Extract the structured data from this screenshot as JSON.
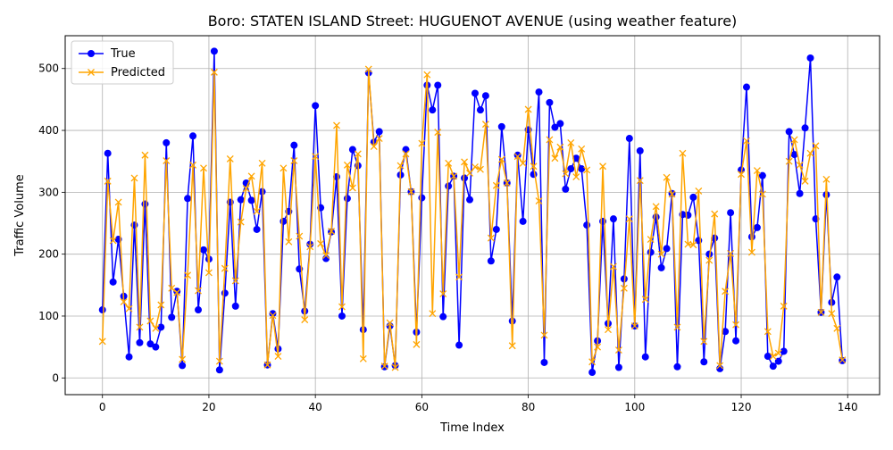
{
  "chart_data": {
    "type": "line",
    "title": "Boro: STATEN ISLAND Street: HUGUENOT AVENUE (using weather feature)",
    "xlabel": "Time Index",
    "ylabel": "Traffic Volume",
    "xlim": [
      -7,
      146
    ],
    "ylim": [
      -27,
      553
    ],
    "xticks": [
      0,
      20,
      40,
      60,
      80,
      100,
      120,
      140
    ],
    "yticks": [
      0,
      100,
      200,
      300,
      400,
      500
    ],
    "grid": true,
    "legend_position": "upper-left",
    "series": [
      {
        "name": "True",
        "color": "#0000ff",
        "marker": "circle",
        "values": [
          110,
          363,
          155,
          224,
          132,
          34,
          247,
          57,
          281,
          55,
          50,
          82,
          380,
          98,
          140,
          20,
          290,
          391,
          110,
          207,
          192,
          528,
          13,
          137,
          284,
          116,
          288,
          315,
          287,
          240,
          301,
          21,
          104,
          47,
          253,
          269,
          376,
          176,
          108,
          216,
          440,
          275,
          193,
          236,
          325,
          100,
          290,
          369,
          343,
          78,
          493,
          381,
          398,
          18,
          84,
          20,
          328,
          369,
          301,
          74,
          291,
          473,
          433,
          473,
          99,
          310,
          326,
          53,
          323,
          288,
          460,
          433,
          456,
          189,
          240,
          406,
          315,
          92,
          360,
          253,
          401,
          329,
          462,
          25,
          445,
          405,
          411,
          305,
          338,
          355,
          338,
          247,
          9,
          60,
          253,
          88,
          257,
          17,
          160,
          387,
          84,
          367,
          34,
          203,
          260,
          178,
          209,
          298,
          18,
          264,
          263,
          292,
          222,
          26,
          200,
          226,
          15,
          75,
          267,
          60,
          336,
          470,
          228,
          243,
          327,
          35,
          19,
          27,
          43,
          398,
          361,
          298,
          404,
          517,
          257,
          106,
          296,
          122,
          163,
          28
        ]
      },
      {
        "name": "Predicted",
        "color": "#ffa500",
        "marker": "x",
        "values": [
          59,
          318,
          222,
          284,
          123,
          112,
          323,
          82,
          360,
          92,
          80,
          118,
          351,
          145,
          138,
          30,
          166,
          344,
          141,
          339,
          170,
          494,
          27,
          177,
          354,
          157,
          252,
          306,
          326,
          269,
          347,
          21,
          101,
          35,
          339,
          220,
          351,
          229,
          94,
          212,
          358,
          217,
          198,
          237,
          408,
          115,
          344,
          307,
          362,
          31,
          499,
          374,
          387,
          19,
          89,
          17,
          343,
          362,
          301,
          54,
          379,
          490,
          104,
          397,
          136,
          347,
          326,
          163,
          349,
          331,
          341,
          337,
          410,
          226,
          311,
          353,
          315,
          52,
          358,
          347,
          434,
          342,
          286,
          69,
          385,
          355,
          373,
          330,
          380,
          325,
          370,
          336,
          26,
          50,
          342,
          78,
          180,
          45,
          145,
          257,
          84,
          319,
          127,
          224,
          277,
          200,
          324,
          297,
          82,
          363,
          216,
          215,
          302,
          59,
          190,
          265,
          20,
          140,
          201,
          86,
          329,
          383,
          203,
          335,
          297,
          75,
          35,
          40,
          116,
          350,
          385,
          344,
          318,
          363,
          375,
          106,
          321,
          104,
          80,
          29
        ]
      }
    ]
  }
}
